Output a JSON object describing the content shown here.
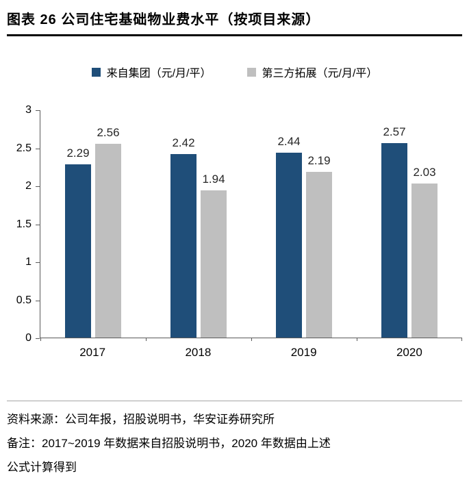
{
  "header": {
    "title": "图表 26 公司住宅基础物业费水平（按项目来源）"
  },
  "legend": [
    {
      "label": "来自集团（元/月/平）",
      "color": "#1F4E79"
    },
    {
      "label": "第三方拓展（元/月/平）",
      "color": "#BFBFBF"
    }
  ],
  "chart_data": {
    "type": "bar",
    "title": "公司住宅基础物业费水平（按项目来源）",
    "categories": [
      "2017",
      "2018",
      "2019",
      "2020"
    ],
    "series": [
      {
        "name": "来自集团（元/月/平）",
        "color": "#1F4E79",
        "values": [
          2.29,
          2.42,
          2.44,
          2.57
        ]
      },
      {
        "name": "第三方拓展（元/月/平）",
        "color": "#BFBFBF",
        "values": [
          2.56,
          1.94,
          2.19,
          2.03
        ]
      }
    ],
    "xlabel": "",
    "ylabel": "",
    "ylim": [
      0,
      3
    ],
    "yticks": [
      0,
      0.5,
      1,
      1.5,
      2,
      2.5,
      3
    ],
    "grid": false,
    "legend_position": "top"
  },
  "footer": {
    "lines": [
      "资料来源：公司年报，招股说明书，华安证券研究所",
      "备注：2017~2019 年数据来自招股说明书，2020 年数据由上述",
      "公式计算得到"
    ]
  }
}
